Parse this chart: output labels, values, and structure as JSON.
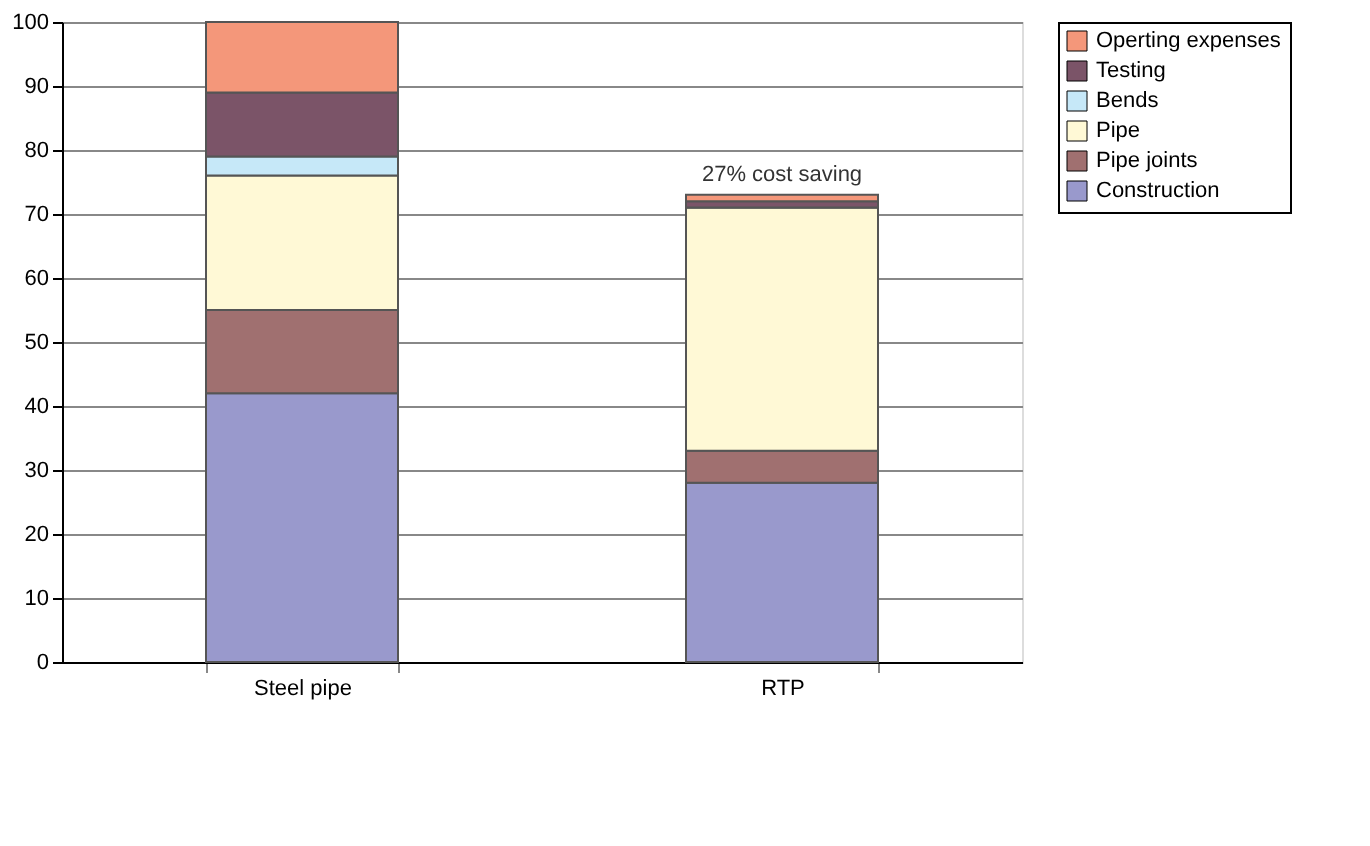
{
  "chart_data": {
    "type": "bar",
    "stacked": true,
    "categories": [
      "Steel pipe",
      "RTP"
    ],
    "series": [
      {
        "name": "Construction",
        "color": "#9999cc",
        "values": [
          42,
          28
        ]
      },
      {
        "name": "Pipe joints",
        "color": "#a07070",
        "values": [
          13,
          5
        ]
      },
      {
        "name": "Pipe",
        "color": "#fff9d6",
        "values": [
          21,
          38
        ]
      },
      {
        "name": "Bends",
        "color": "#c6e8f8",
        "values": [
          3,
          0
        ]
      },
      {
        "name": "Testing",
        "color": "#7b5468",
        "values": [
          10,
          1
        ]
      },
      {
        "name": "Operting expenses",
        "color": "#f4977a",
        "values": [
          11,
          1
        ]
      }
    ],
    "ylim": [
      0,
      100
    ],
    "yticks": [
      0,
      10,
      20,
      30,
      40,
      50,
      60,
      70,
      80,
      90,
      100
    ],
    "grid": "y",
    "legend": "right",
    "annotations": [
      {
        "text": "27% cost saving",
        "x": "RTP",
        "y": 73
      }
    ]
  }
}
